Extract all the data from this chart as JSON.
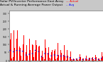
{
  "title_left": "Solar PV/Inverter Performance East Array",
  "title_right": "Actual & Running Average Power Output",
  "title_fontsize": 3.2,
  "bg_color": "#c8c8c8",
  "plot_bg_color": "#ffffff",
  "bar_color": "#ff0000",
  "avg_line_color": "#0000ff",
  "grid_color": "#ffffff",
  "ylim": [
    0,
    320
  ],
  "num_days": 30,
  "points_per_day": 48
}
